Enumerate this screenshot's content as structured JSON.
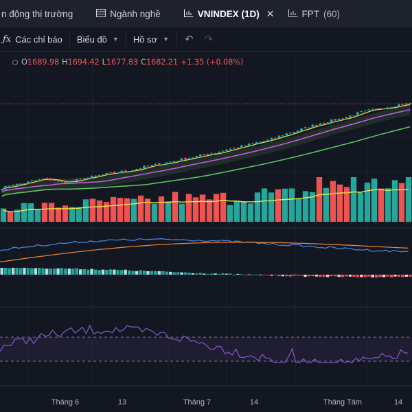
{
  "tabs": [
    {
      "label": "n động thị trường",
      "icon": "",
      "active": false,
      "closable": false
    },
    {
      "label": "Ngành nghề",
      "icon": "table-icon",
      "active": false,
      "closable": false
    },
    {
      "label": "VNINDEX (1D)",
      "icon": "chart-icon",
      "active": true,
      "closable": true
    },
    {
      "label": "FPT",
      "count": "(60)",
      "icon": "chart-icon",
      "active": false,
      "closable": false
    }
  ],
  "toolbar": {
    "indicators_label": "Các chỉ báo",
    "chart_type_label": "Biểu đồ",
    "profile_label": "Hồ sơ"
  },
  "ohlc": {
    "o_label": "O",
    "o_value": "1689.98",
    "h_label": "H",
    "h_value": "1694.42",
    "l_label": "L",
    "l_value": "1677.83",
    "c_label": "C",
    "c_value": "1682.21",
    "change": "+1.35 (+0.08%)"
  },
  "colors": {
    "background": "#131722",
    "up": "#26a69a",
    "down": "#ef5350",
    "ma_yellow": "#f0d84a",
    "ma_purple": "#c65be0",
    "ma_green": "#5cc45a",
    "macd_line": "#4c8dea",
    "signal_line": "#f08a3c",
    "rsi_line": "#7e57c2"
  },
  "x_axis": {
    "labels": [
      "Tháng 6",
      "13",
      "Tháng 7",
      "14",
      "Tháng Tám",
      "14"
    ]
  },
  "chart_data": {
    "type": "candlestick",
    "ohlc_last": {
      "open": 1689.98,
      "high": 1694.42,
      "low": 1677.83,
      "close": 1682.21,
      "change": 1.35,
      "change_pct": 0.08
    },
    "trend_close": [
      1330,
      1345,
      1350,
      1362,
      1370,
      1365,
      1355,
      1360,
      1372,
      1380,
      1388,
      1395,
      1402,
      1410,
      1420,
      1428,
      1436,
      1446,
      1455,
      1462,
      1472,
      1480,
      1492,
      1500,
      1510,
      1522,
      1530,
      1545,
      1560,
      1572,
      1585,
      1600,
      1610,
      1618,
      1630,
      1645,
      1655,
      1662,
      1672,
      1680,
      1682.21
    ],
    "panes": [
      "price",
      "volume",
      "macd",
      "rsi"
    ],
    "volume_profile": [
      0.35,
      0.4,
      0.38,
      0.42,
      0.45,
      0.5,
      0.48,
      0.52,
      0.6,
      0.55,
      0.58,
      0.62,
      0.7,
      0.65,
      0.72,
      0.8,
      0.95,
      0.85,
      1.0,
      0.9
    ],
    "rsi_levels": [
      70,
      30
    ],
    "x_ticks": [
      "Tháng 6",
      "13",
      "Tháng 7",
      "14",
      "Tháng Tám",
      "14"
    ]
  }
}
